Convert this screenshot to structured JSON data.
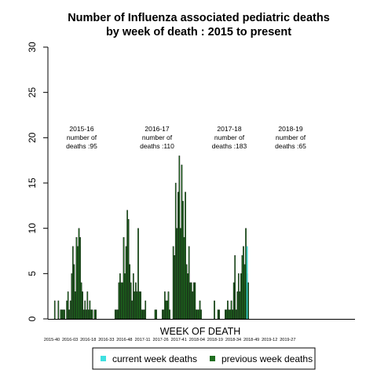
{
  "chart_data": {
    "type": "bar",
    "title": "Number of Influenza associated pediatric deaths",
    "subtitle": "by week of death : 2015 to present",
    "xlabel": "WEEK OF DEATH",
    "ylabel": "",
    "ylim": [
      0,
      30
    ],
    "y_ticks": [
      0,
      5,
      10,
      15,
      20,
      25,
      30
    ],
    "x_tick_labels": [
      "2015-40",
      "2016-03",
      "2016-18",
      "2016-33",
      "2016-48",
      "2017-11",
      "2017-26",
      "2017-41",
      "2018-04",
      "2018-19",
      "2018-34",
      "2018-49",
      "2019-12",
      "2019-27"
    ],
    "first_week": "2015-40",
    "total_weeks": 199,
    "grid": false,
    "legend_position": "bottom",
    "series": [
      {
        "name": "previous week deaths",
        "color": "#1f6e1f",
        "values": [
          0,
          0,
          2,
          0,
          0,
          2,
          0,
          1,
          1,
          1,
          1,
          0,
          2,
          3,
          1,
          2,
          5,
          8,
          6,
          3,
          9,
          8,
          10,
          9,
          4,
          3,
          1,
          2,
          1,
          3,
          1,
          2,
          1,
          1,
          0,
          1,
          1,
          0,
          0,
          0,
          0,
          0,
          0,
          0,
          0,
          0,
          0,
          0,
          0,
          0,
          0,
          0,
          1,
          1,
          1,
          4,
          5,
          4,
          4,
          9,
          5,
          8,
          12,
          11,
          6,
          4,
          2,
          5,
          3,
          4,
          3,
          10,
          3,
          3,
          1,
          1,
          1,
          2,
          0,
          0,
          0,
          0,
          0,
          0,
          0,
          1,
          1,
          0,
          0,
          0,
          0,
          1,
          1,
          3,
          2,
          2,
          3,
          1,
          0,
          0,
          8,
          7,
          15,
          10,
          14,
          18,
          10,
          17,
          13,
          9,
          14,
          6,
          5,
          8,
          4,
          4,
          3,
          4,
          4,
          1,
          1,
          1,
          2,
          1,
          0,
          0,
          0,
          0,
          0,
          0,
          0,
          0,
          0,
          0,
          2,
          0,
          0,
          1,
          1,
          0,
          0,
          0,
          0,
          1,
          1,
          2,
          1,
          1,
          2,
          1,
          4,
          7,
          1,
          3,
          5,
          3,
          5,
          7,
          8,
          6,
          10,
          5,
          4,
          0,
          0,
          0,
          0,
          0,
          0,
          0,
          0,
          0,
          0,
          0,
          0,
          0,
          0,
          0,
          0,
          0,
          0,
          0,
          0,
          0,
          0,
          0,
          0,
          0,
          0,
          0,
          0,
          0,
          0,
          0,
          0,
          0,
          0,
          0,
          0
        ]
      },
      {
        "name": "current week deaths",
        "color": "#3fe0e0",
        "values_note": "",
        "week_index": 161,
        "value": 8
      }
    ],
    "season_labels": [
      {
        "season": "2015-16",
        "line1": "number of",
        "line2": "deaths :95"
      },
      {
        "season": "2016-17",
        "line1": "number of",
        "line2": "deaths :110"
      },
      {
        "season": "2017-18",
        "line1": "number of",
        "line2": "deaths :183"
      },
      {
        "season": "2018-19",
        "line1": "number of",
        "line2": "deaths :65"
      }
    ],
    "legend": [
      {
        "label": "current week deaths",
        "color": "#3fe0e0"
      },
      {
        "label": "previous week deaths",
        "color": "#1f6e1f"
      }
    ]
  }
}
